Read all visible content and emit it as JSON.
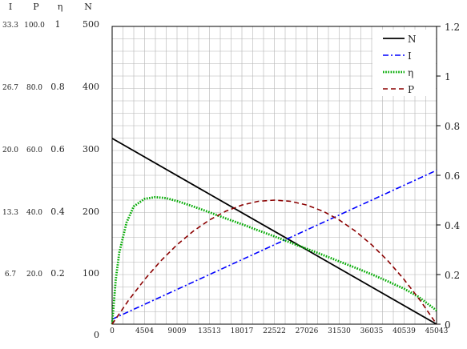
{
  "chart_data": {
    "type": "line",
    "x_ticks": [
      "0",
      "4504",
      "9009",
      "13513",
      "18017",
      "22522",
      "27026",
      "31530",
      "36035",
      "40539",
      "45043"
    ],
    "xlim": [
      0,
      45043
    ],
    "left_axes": {
      "headers": [
        "I",
        "P",
        "η",
        "N"
      ],
      "I_ticks": [
        "33.3",
        "26.7",
        "20.0",
        "13.3",
        "6.7"
      ],
      "P_ticks": [
        "100.0",
        "80.0",
        "60.0",
        "40.0",
        "20.0"
      ],
      "eta_ticks": [
        "1",
        "0.8",
        "0.6",
        "0.4",
        "0.2"
      ],
      "N_ticks": [
        "500",
        "400",
        "300",
        "200",
        "100",
        "0"
      ],
      "N_range": [
        0,
        500
      ]
    },
    "right_axis": {
      "ticks": [
        "1.2",
        "1",
        "0.8",
        "0.6",
        "0.4",
        "0.2",
        "0"
      ],
      "range": [
        0,
        1.2
      ]
    },
    "grid": true,
    "legend_position": "top-right",
    "series": [
      {
        "name": "N",
        "color": "#000000",
        "style": "solid",
        "x": [
          0,
          45043
        ],
        "y": [
          312,
          0
        ]
      },
      {
        "name": "I",
        "color": "#0000ff",
        "style": "dash-dot",
        "x": [
          0,
          45043
        ],
        "y": [
          0.02,
          0.62
        ]
      },
      {
        "name": "η",
        "color": "#00aa00",
        "style": "dotted",
        "x": [
          0,
          500,
          1000,
          2000,
          3000,
          4504,
          6000,
          7500,
          9009,
          11000,
          13513,
          16000,
          18017,
          20000,
          22522,
          25000,
          27026,
          29000,
          31530,
          34000,
          36035,
          38000,
          40539,
          42500,
          45043
        ],
        "y": [
          0,
          0.18,
          0.29,
          0.41,
          0.475,
          0.505,
          0.512,
          0.508,
          0.496,
          0.477,
          0.451,
          0.424,
          0.403,
          0.381,
          0.354,
          0.326,
          0.304,
          0.282,
          0.253,
          0.225,
          0.201,
          0.176,
          0.143,
          0.111,
          0.055
        ]
      },
      {
        "name": "P",
        "color": "#8b0000",
        "style": "dashed",
        "x": [
          0,
          2252,
          4504,
          6756,
          9009,
          11261,
          13513,
          15765,
          18017,
          20270,
          22522,
          24774,
          27026,
          29278,
          31530,
          33782,
          36035,
          38287,
          40539,
          42791,
          45043
        ],
        "y": [
          0,
          0.095,
          0.18,
          0.255,
          0.32,
          0.375,
          0.42,
          0.455,
          0.48,
          0.495,
          0.5,
          0.495,
          0.48,
          0.455,
          0.42,
          0.375,
          0.32,
          0.255,
          0.18,
          0.095,
          0
        ]
      }
    ]
  }
}
